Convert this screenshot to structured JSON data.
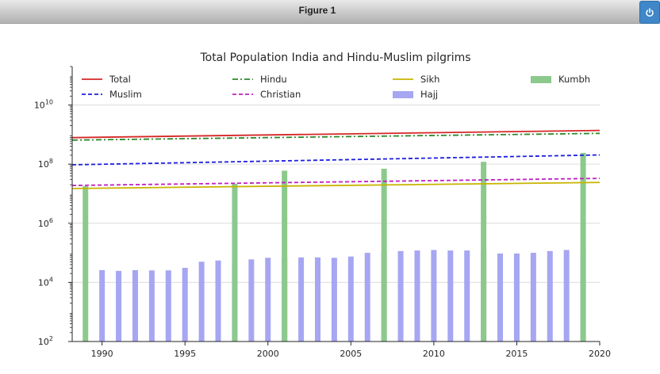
{
  "window": {
    "title": "Figure 1",
    "power_icon": "power-icon",
    "accent": "#3f87c8"
  },
  "chart_data": {
    "type": "bar",
    "title": "Total Population India and Hindu-Muslim pilgrims",
    "xlabel": "",
    "ylabel": "",
    "y_scale": "log",
    "xlim": [
      1988.2,
      2020
    ],
    "ylim": [
      100,
      200000000000
    ],
    "grid": "y",
    "legend_position": "top",
    "x_ticks": [
      1990,
      1995,
      2000,
      2005,
      2010,
      2015,
      2020
    ],
    "y_ticks": [
      {
        "value": 100,
        "base": "10",
        "exp": "2"
      },
      {
        "value": 10000,
        "base": "10",
        "exp": "4"
      },
      {
        "value": 1000000,
        "base": "10",
        "exp": "6"
      },
      {
        "value": 100000000,
        "base": "10",
        "exp": "8"
      },
      {
        "value": 10000000000,
        "base": "10",
        "exp": "10"
      }
    ],
    "lines": [
      {
        "name": "Total",
        "color": "#d62728",
        "dash": "",
        "x": [
          1988.2,
          2020
        ],
        "y": [
          790000000,
          1380000000
        ]
      },
      {
        "name": "Hindu",
        "color": "#2a8a2a",
        "dash": "7,3,2,3",
        "x": [
          1988.2,
          2020
        ],
        "y": [
          650000000,
          1100000000
        ]
      },
      {
        "name": "Sikh",
        "color": "#c8b400",
        "dash": "",
        "x": [
          1988.2,
          2020
        ],
        "y": [
          15000000,
          24000000
        ]
      },
      {
        "name": "Muslim",
        "color": "#1f1fe0",
        "dash": "5,3",
        "x": [
          1988.2,
          2020
        ],
        "y": [
          95000000,
          205000000
        ]
      },
      {
        "name": "Christian",
        "color": "#c020c0",
        "dash": "5,3",
        "x": [
          1988.2,
          2020
        ],
        "y": [
          19000000,
          33000000
        ]
      }
    ],
    "bar_series": [
      {
        "name": "Hajj",
        "color": "#a6a6f2",
        "x": [
          1990,
          1991,
          1992,
          1993,
          1994,
          1995,
          1996,
          1997,
          1998,
          1999,
          2000,
          2001,
          2002,
          2003,
          2004,
          2005,
          2006,
          2007,
          2008,
          2009,
          2010,
          2011,
          2012,
          2013,
          2014,
          2015,
          2016,
          2017,
          2018,
          2019
        ],
        "values": [
          26000,
          24500,
          26000,
          25500,
          25500,
          31000,
          50000,
          55000,
          58000,
          60000,
          68000,
          68000,
          70000,
          70000,
          68000,
          75000,
          100000,
          100000,
          115000,
          120000,
          125000,
          120000,
          120000,
          115000,
          95000,
          95000,
          100000,
          115000,
          125000,
          130000
        ]
      },
      {
        "name": "Kumbh",
        "color": "#8cc98c",
        "x": [
          1989,
          1998,
          2001,
          2007,
          2013,
          2019
        ],
        "values": [
          18000000,
          22000000,
          60000000,
          70000000,
          120000000,
          240000000
        ]
      }
    ],
    "legend": [
      {
        "name": "Total",
        "kind": "line",
        "color": "#d62728",
        "dash": ""
      },
      {
        "name": "Hindu",
        "kind": "line",
        "color": "#2a8a2a",
        "dash": "7,3,2,3"
      },
      {
        "name": "Sikh",
        "kind": "line",
        "color": "#c8b400",
        "dash": ""
      },
      {
        "name": "Kumbh",
        "kind": "bar",
        "color": "#8cc98c",
        "dash": ""
      },
      {
        "name": "Muslim",
        "kind": "line",
        "color": "#1f1fe0",
        "dash": "5,3"
      },
      {
        "name": "Christian",
        "kind": "line",
        "color": "#c020c0",
        "dash": "5,3"
      },
      {
        "name": "Hajj",
        "kind": "bar",
        "color": "#a6a6f2",
        "dash": ""
      }
    ]
  }
}
